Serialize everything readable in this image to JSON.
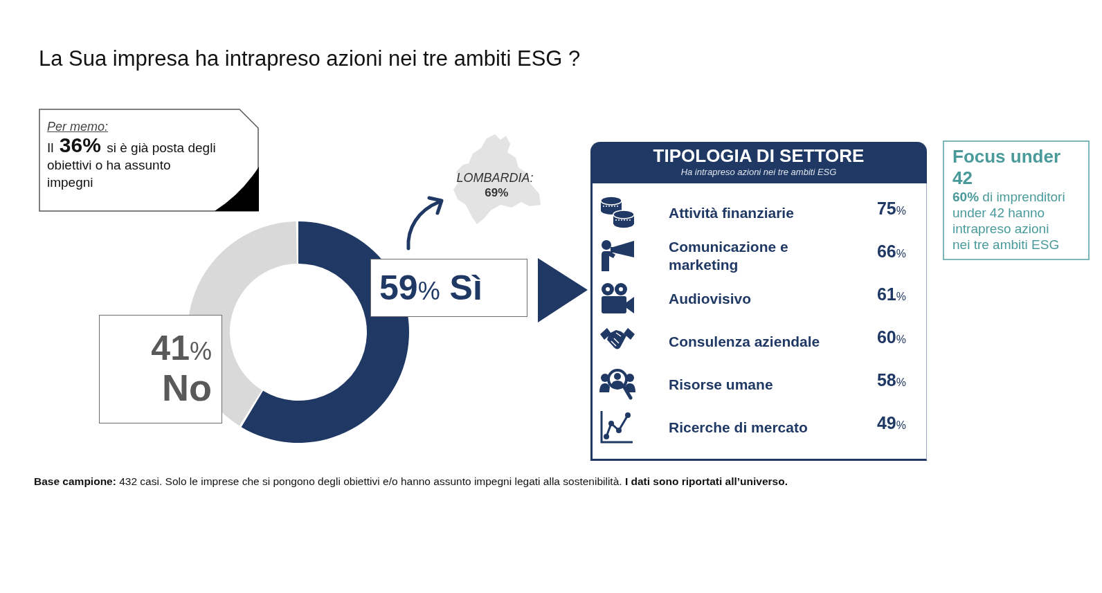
{
  "chart_data": [
    {
      "type": "donut",
      "title": "La Sua impresa ha intrapreso azioni nei tre ambiti ESG ?",
      "categories": [
        "Sì",
        "No"
      ],
      "values": [
        59,
        41
      ],
      "colors": [
        "#1f3864",
        "#d9d9d9"
      ],
      "value_labels": [
        "59%",
        "41%"
      ],
      "annotations": [
        "Per memo:",
        "Il 36% si è già posta degli obiettivi o ha assunto impegni",
        "LOMBARDIA: 69%",
        "Base campione:",
        "432 casi. Solo le imprese che si pongono degli obiettivi e/o hanno assunto impegni legati alla sostenibilità.",
        "I dati sono riportati all’universo."
      ]
    },
    {
      "type": "other",
      "title": "TIPOLOGIA DI SETTORE",
      "subtitle": "Ha intrapreso azioni nei tre ambiti ESG",
      "categories": [
        "Attività finanziarie",
        "Comunicazione e marketing",
        "Audiovisivo",
        "Consulenza aziendale",
        "Risorse umane",
        "Ricerche di mercato"
      ],
      "values": [
        75,
        66,
        61,
        60,
        58,
        49
      ],
      "value_labels": [
        "75%",
        "66%",
        "61%",
        "60%",
        "58%",
        "49%"
      ],
      "color": "#1f3864"
    },
    {
      "type": "other",
      "title": "Focus under 42",
      "annotations": [
        "60% di imprenditori under 42 hanno intrapreso azioni nei tre ambiti ESG"
      ]
    }
  ]
}
